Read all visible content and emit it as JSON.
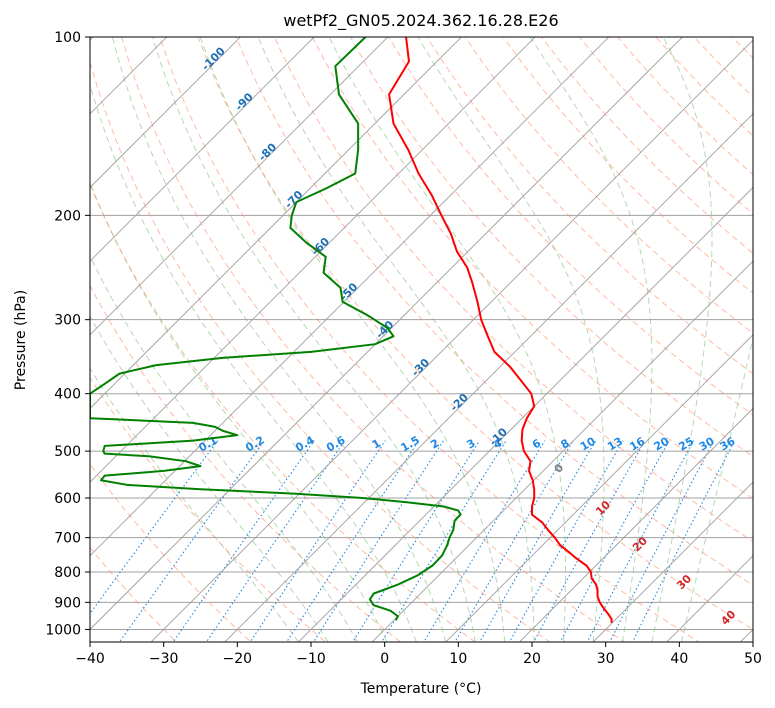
{
  "chart_data": {
    "type": "line",
    "title": "wetPf2_GN05.2024.362.16.28.E26",
    "xlabel": "Temperature (°C)",
    "ylabel": "Pressure (hPa)",
    "xlim": [
      -40,
      50
    ],
    "ylim": [
      1050,
      100
    ],
    "y_scale": "log",
    "x_ticks": [
      -40,
      -30,
      -20,
      -10,
      0,
      10,
      20,
      30,
      40,
      50
    ],
    "x_tick_labels": [
      "−40",
      "−30",
      "−20",
      "−10",
      "0",
      "10",
      "20",
      "30",
      "40",
      "50"
    ],
    "y_ticks": [
      100,
      200,
      300,
      400,
      500,
      600,
      700,
      800,
      900,
      1000
    ],
    "y_tick_labels": [
      "100",
      "200",
      "300",
      "400",
      "500",
      "600",
      "700",
      "800",
      "900",
      "1000"
    ],
    "grid": true,
    "colors": {
      "temperature": "#ff0000",
      "dewpoint": "#008000",
      "isotherm_grid": "#a0a0a0",
      "dry_adiabat": "#ff8c69",
      "moist_adiabat": "#7fbf7f",
      "mixing_ratio": "#1e88e5",
      "isotherm_label": "#1f6fb4",
      "moist_label": "#d62728",
      "zero_label": "#808080"
    },
    "isotherm_labels": [
      {
        "t": -100,
        "p": 110,
        "text": "-100"
      },
      {
        "t": -90,
        "p": 130,
        "text": "-90"
      },
      {
        "t": -80,
        "p": 158,
        "text": "-80"
      },
      {
        "t": -70,
        "p": 190,
        "text": "-70"
      },
      {
        "t": -60,
        "p": 228,
        "text": "-60"
      },
      {
        "t": -50,
        "p": 272,
        "text": "-50"
      },
      {
        "t": -40,
        "p": 315,
        "text": "-40"
      },
      {
        "t": -30,
        "p": 365,
        "text": "-30"
      },
      {
        "t": -20,
        "p": 418,
        "text": "-20"
      },
      {
        "t": -10,
        "p": 478,
        "text": "-10"
      }
    ],
    "mixing_ratio_labels": [
      "0.1",
      "0.2",
      "0.4",
      "0.6",
      "1",
      "1.5",
      "2",
      "3",
      "4",
      "6",
      "8",
      "10",
      "13",
      "16",
      "20",
      "25",
      "30",
      "36"
    ],
    "moist_adiabat_labels": [
      {
        "text": "0",
        "t": 24,
        "p": 540
      },
      {
        "text": "10",
        "t": 30,
        "p": 630
      },
      {
        "text": "20",
        "t": 35,
        "p": 725
      },
      {
        "text": "30",
        "t": 41,
        "p": 840
      },
      {
        "text": "40",
        "t": 47,
        "p": 965
      }
    ],
    "series": [
      {
        "label": "temperature",
        "p": [
          100,
          110,
          125,
          140,
          155,
          170,
          185,
          200,
          215,
          230,
          245,
          260,
          280,
          300,
          320,
          340,
          360,
          380,
          400,
          420,
          440,
          460,
          480,
          500,
          520,
          540,
          560,
          580,
          600,
          620,
          640,
          660,
          680,
          700,
          720,
          740,
          760,
          780,
          800,
          820,
          840,
          860,
          880,
          900,
          920,
          940,
          960,
          975
        ],
        "t": [
          2.9,
          3.3,
          0.6,
          1.2,
          3.2,
          4.6,
          6.4,
          7.7,
          9.0,
          9.8,
          11.2,
          11.9,
          12.6,
          13.1,
          14.0,
          14.9,
          17.0,
          18.5,
          19.9,
          20.3,
          19.3,
          18.7,
          18.6,
          18.9,
          19.8,
          19.6,
          20.1,
          20.3,
          20.3,
          20.0,
          20.0,
          21.4,
          22.2,
          23.1,
          23.8,
          25.0,
          26.1,
          27.4,
          28.0,
          28.1,
          28.7,
          28.9,
          28.9,
          29.2,
          29.7,
          30.3,
          30.8,
          30.8
        ]
      },
      {
        "label": "dewpoint",
        "p": [
          100,
          112,
          125,
          140,
          155,
          170,
          180,
          190,
          200,
          210,
          222,
          235,
          250,
          265,
          280,
          295,
          310,
          320,
          330,
          340,
          348,
          358,
          370,
          385,
          400,
          440,
          448,
          455,
          462,
          470,
          480,
          490,
          500,
          505,
          510,
          520,
          530,
          540,
          550,
          560,
          570,
          580,
          590,
          600,
          610,
          620,
          630,
          640,
          655,
          680,
          700,
          720,
          750,
          780,
          810,
          840,
          870,
          890,
          910,
          930,
          950,
          965
        ],
        "t": [
          -2.6,
          -6.7,
          -6.2,
          -3.6,
          -3.6,
          -4.0,
          -7.9,
          -12.0,
          -12.6,
          -12.8,
          -10.7,
          -8.0,
          -8.3,
          -6.0,
          -5.7,
          -2.3,
          0.4,
          1.2,
          -1.3,
          -10.0,
          -22.0,
          -31.0,
          -36.0,
          -38.0,
          -40.0,
          -40.0,
          -26.0,
          -23.0,
          -22.0,
          -20.0,
          -26.0,
          -38.0,
          -38.2,
          -38.0,
          -32.0,
          -27.0,
          -25.0,
          -30.0,
          -38.0,
          -38.5,
          -35.0,
          -25.0,
          -12.0,
          -3.0,
          3.0,
          8.0,
          10.0,
          10.3,
          9.5,
          9.3,
          8.8,
          8.5,
          7.8,
          6.5,
          4.5,
          1.8,
          -1.5,
          -2.0,
          -1.5,
          0.8,
          1.8,
          1.5
        ]
      }
    ]
  }
}
